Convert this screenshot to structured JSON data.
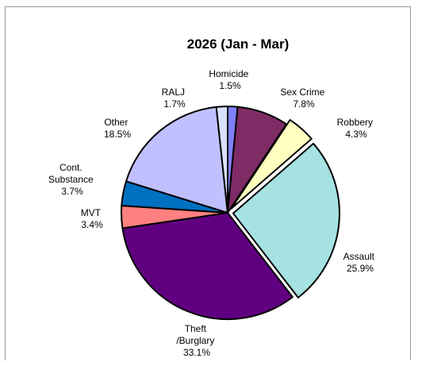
{
  "chart_data": {
    "type": "pie",
    "title": "2026 (Jan - Mar)",
    "slices": [
      {
        "label": "Homicide",
        "value": 1.5,
        "display": "1.5%",
        "color": "#8080ff",
        "exploded": false
      },
      {
        "label": "Sex Crime",
        "value": 7.8,
        "display": "7.8%",
        "color": "#7f2b66",
        "exploded": false
      },
      {
        "label": "Robbery",
        "value": 4.3,
        "display": "4.3%",
        "color": "#ffffc0",
        "exploded": true
      },
      {
        "label": "Assault",
        "value": 25.9,
        "display": "25.9%",
        "color": "#a6e2e2",
        "exploded": true
      },
      {
        "label": "Theft /Burglary",
        "value": 33.1,
        "display": "33.1%",
        "color": "#600080",
        "exploded": false
      },
      {
        "label": "MVT",
        "value": 3.4,
        "display": "3.4%",
        "color": "#ff8080",
        "exploded": false
      },
      {
        "label": "Cont. Substance",
        "value": 3.7,
        "display": "3.7%",
        "color": "#0070c0",
        "exploded": false
      },
      {
        "label": "Other",
        "value": 18.5,
        "display": "18.5%",
        "color": "#c0c0ff",
        "exploded": false
      },
      {
        "label": "RALJ",
        "value": 1.7,
        "display": "1.7%",
        "color": "#d9e1ff",
        "exploded": false
      }
    ]
  }
}
